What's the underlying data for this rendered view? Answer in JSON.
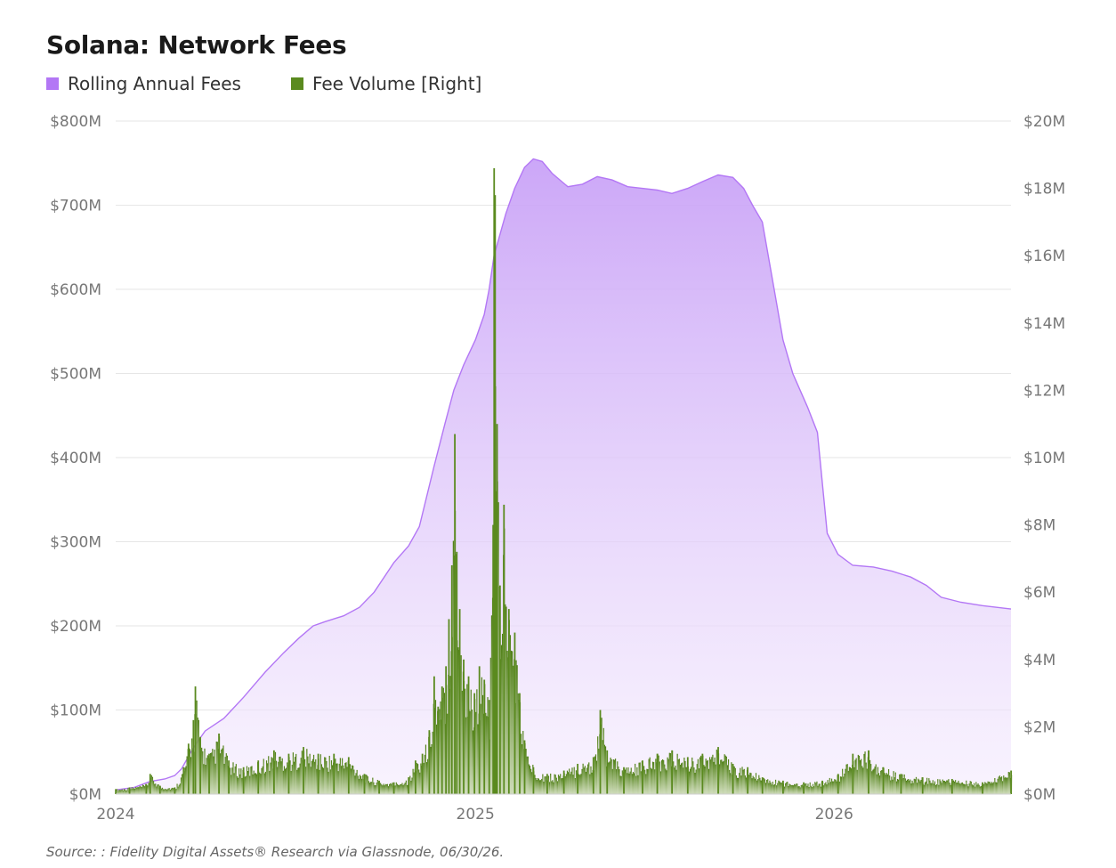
{
  "colors": {
    "purple": "#b377f5",
    "green": "#5a8a1f",
    "grid": "#e6e6e6"
  },
  "chart_data": {
    "type": "area",
    "title": "Solana: Network Fees",
    "source": "Source: : Fidelity Digital Assets® Research via Glassnode, 06/30/26.",
    "x_range": [
      "2024-01-01",
      "2026-06-30"
    ],
    "x_ticks": [
      {
        "label": "2024",
        "date": "2024-01-01"
      },
      {
        "label": "2025",
        "date": "2025-01-01"
      },
      {
        "label": "2026",
        "date": "2026-01-01"
      }
    ],
    "y_left": {
      "min": 0,
      "max": 800,
      "unit": "M USD",
      "ticks": [
        "$0M",
        "$100M",
        "$200M",
        "$300M",
        "$400M",
        "$500M",
        "$600M",
        "$700M",
        "$800M"
      ]
    },
    "y_right": {
      "min": 0,
      "max": 20,
      "unit": "M USD",
      "ticks": [
        "$0M",
        "$2M",
        "$4M",
        "$6M",
        "$8M",
        "$10M",
        "$12M",
        "$14M",
        "$16M",
        "$18M",
        "$20M"
      ]
    },
    "grid": true,
    "legend_position": "top-left",
    "series": [
      {
        "name": "Rolling Annual Fees",
        "axis": "left",
        "type": "area",
        "color": "#b377f5",
        "points": [
          [
            "2024-01-01",
            5
          ],
          [
            "2024-01-20",
            8
          ],
          [
            "2024-02-05",
            15
          ],
          [
            "2024-02-20",
            18
          ],
          [
            "2024-03-01",
            22
          ],
          [
            "2024-03-08",
            30
          ],
          [
            "2024-03-20",
            55
          ],
          [
            "2024-04-01",
            75
          ],
          [
            "2024-04-20",
            90
          ],
          [
            "2024-05-10",
            115
          ],
          [
            "2024-06-01",
            145
          ],
          [
            "2024-06-20",
            168
          ],
          [
            "2024-07-05",
            185
          ],
          [
            "2024-07-20",
            200
          ],
          [
            "2024-08-01",
            205
          ],
          [
            "2024-08-20",
            212
          ],
          [
            "2024-09-05",
            222
          ],
          [
            "2024-09-20",
            240
          ],
          [
            "2024-10-10",
            275
          ],
          [
            "2024-10-25",
            295
          ],
          [
            "2024-11-05",
            318
          ],
          [
            "2024-11-20",
            390
          ],
          [
            "2024-12-01",
            440
          ],
          [
            "2024-12-10",
            480
          ],
          [
            "2024-12-20",
            510
          ],
          [
            "2025-01-01",
            540
          ],
          [
            "2025-01-10",
            570
          ],
          [
            "2025-01-15",
            600
          ],
          [
            "2025-01-20",
            640
          ],
          [
            "2025-02-01",
            690
          ],
          [
            "2025-02-10",
            720
          ],
          [
            "2025-02-20",
            745
          ],
          [
            "2025-03-01",
            755
          ],
          [
            "2025-03-10",
            752
          ],
          [
            "2025-03-20",
            738
          ],
          [
            "2025-04-05",
            722
          ],
          [
            "2025-04-20",
            725
          ],
          [
            "2025-05-05",
            734
          ],
          [
            "2025-05-20",
            730
          ],
          [
            "2025-06-05",
            722
          ],
          [
            "2025-06-20",
            720
          ],
          [
            "2025-07-05",
            718
          ],
          [
            "2025-07-20",
            714
          ],
          [
            "2025-08-05",
            720
          ],
          [
            "2025-08-20",
            728
          ],
          [
            "2025-09-05",
            736
          ],
          [
            "2025-09-20",
            733
          ],
          [
            "2025-10-01",
            720
          ],
          [
            "2025-10-10",
            700
          ],
          [
            "2025-10-20",
            680
          ],
          [
            "2025-11-01",
            600
          ],
          [
            "2025-11-10",
            540
          ],
          [
            "2025-11-20",
            500
          ],
          [
            "2025-12-05",
            460
          ],
          [
            "2025-12-15",
            430
          ],
          [
            "2025-12-25",
            310
          ],
          [
            "2026-01-05",
            285
          ],
          [
            "2026-01-20",
            272
          ],
          [
            "2026-02-10",
            270
          ],
          [
            "2026-03-01",
            265
          ],
          [
            "2026-03-20",
            258
          ],
          [
            "2026-04-05",
            248
          ],
          [
            "2026-04-20",
            234
          ],
          [
            "2026-05-10",
            228
          ],
          [
            "2026-06-01",
            224
          ],
          [
            "2026-06-30",
            220
          ]
        ]
      },
      {
        "name": "Fee Volume [Right]",
        "axis": "right",
        "type": "bar",
        "color": "#5a8a1f",
        "points": [
          [
            "2024-01-01",
            0.15
          ],
          [
            "2024-01-15",
            0.2
          ],
          [
            "2024-02-01",
            0.3
          ],
          [
            "2024-02-05",
            0.6
          ],
          [
            "2024-02-15",
            0.25
          ],
          [
            "2024-03-01",
            0.2
          ],
          [
            "2024-03-10",
            0.8
          ],
          [
            "2024-03-15",
            1.5
          ],
          [
            "2024-03-20",
            2.2
          ],
          [
            "2024-03-22",
            3.2
          ],
          [
            "2024-03-27",
            1.7
          ],
          [
            "2024-04-05",
            1.2
          ],
          [
            "2024-04-15",
            1.8
          ],
          [
            "2024-04-25",
            1.0
          ],
          [
            "2024-05-10",
            0.8
          ],
          [
            "2024-05-25",
            1.0
          ],
          [
            "2024-06-10",
            1.3
          ],
          [
            "2024-06-25",
            1.2
          ],
          [
            "2024-07-10",
            1.4
          ],
          [
            "2024-07-25",
            1.2
          ],
          [
            "2024-08-10",
            1.2
          ],
          [
            "2024-08-25",
            1.1
          ],
          [
            "2024-09-10",
            0.6
          ],
          [
            "2024-09-25",
            0.4
          ],
          [
            "2024-10-10",
            0.35
          ],
          [
            "2024-10-25",
            0.5
          ],
          [
            "2024-11-01",
            1.0
          ],
          [
            "2024-11-08",
            1.2
          ],
          [
            "2024-11-15",
            1.9
          ],
          [
            "2024-11-20",
            3.5
          ],
          [
            "2024-11-24",
            2.6
          ],
          [
            "2024-11-28",
            3.2
          ],
          [
            "2024-12-02",
            3.8
          ],
          [
            "2024-12-05",
            5.2
          ],
          [
            "2024-12-08",
            6.8
          ],
          [
            "2024-12-11",
            10.7
          ],
          [
            "2024-12-13",
            7.2
          ],
          [
            "2024-12-16",
            5.5
          ],
          [
            "2024-12-20",
            4.0
          ],
          [
            "2024-12-25",
            3.5
          ],
          [
            "2024-12-31",
            3.0
          ],
          [
            "2025-01-05",
            3.8
          ],
          [
            "2025-01-10",
            3.4
          ],
          [
            "2025-01-15",
            2.8
          ],
          [
            "2025-01-19",
            8.0
          ],
          [
            "2025-01-20",
            18.6
          ],
          [
            "2025-01-21",
            17.8
          ],
          [
            "2025-01-22",
            9.0
          ],
          [
            "2025-01-23",
            11.0
          ],
          [
            "2025-01-26",
            6.2
          ],
          [
            "2025-01-30",
            8.6
          ],
          [
            "2025-02-04",
            5.5
          ],
          [
            "2025-02-10",
            4.8
          ],
          [
            "2025-02-15",
            3.0
          ],
          [
            "2025-02-20",
            1.6
          ],
          [
            "2025-03-01",
            0.8
          ],
          [
            "2025-03-15",
            0.6
          ],
          [
            "2025-04-01",
            0.7
          ],
          [
            "2025-04-15",
            0.9
          ],
          [
            "2025-05-01",
            1.1
          ],
          [
            "2025-05-08",
            2.5
          ],
          [
            "2025-05-15",
            1.3
          ],
          [
            "2025-06-01",
            0.8
          ],
          [
            "2025-06-20",
            1.0
          ],
          [
            "2025-07-05",
            1.2
          ],
          [
            "2025-07-20",
            1.3
          ],
          [
            "2025-08-05",
            1.1
          ],
          [
            "2025-08-20",
            1.2
          ],
          [
            "2025-09-05",
            1.4
          ],
          [
            "2025-09-20",
            0.9
          ],
          [
            "2025-10-05",
            0.8
          ],
          [
            "2025-10-20",
            0.5
          ],
          [
            "2025-11-10",
            0.4
          ],
          [
            "2025-12-01",
            0.35
          ],
          [
            "2025-12-20",
            0.4
          ],
          [
            "2026-01-05",
            0.6
          ],
          [
            "2026-01-20",
            1.2
          ],
          [
            "2026-02-05",
            1.3
          ],
          [
            "2026-02-20",
            0.8
          ],
          [
            "2026-03-10",
            0.6
          ],
          [
            "2026-04-01",
            0.5
          ],
          [
            "2026-05-01",
            0.45
          ],
          [
            "2026-06-01",
            0.35
          ],
          [
            "2026-06-30",
            0.7
          ]
        ]
      }
    ]
  }
}
